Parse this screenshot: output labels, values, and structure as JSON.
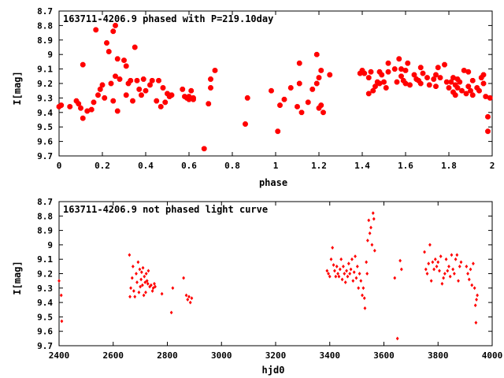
{
  "chart_data": [
    {
      "type": "scatter",
      "title": "163711-4206.9 phased with P=219.10day",
      "xlabel": "phase",
      "ylabel": "I[mag]",
      "xlim": [
        0,
        2
      ],
      "ylim": [
        8.7,
        9.7
      ],
      "y_inverted": true,
      "x_ticks": [
        "0",
        "0.2",
        "0.4",
        "0.6",
        "0.8",
        "1",
        "1.2",
        "1.4",
        "1.6",
        "1.8",
        "2"
      ],
      "y_ticks": [
        "8.7",
        "8.8",
        "8.9",
        "9",
        "9.1",
        "9.2",
        "9.3",
        "9.4",
        "9.5",
        "9.6",
        "9.7"
      ],
      "x_tick_values": [
        0,
        0.2,
        0.4,
        0.6,
        0.8,
        1,
        1.2,
        1.4,
        1.6,
        1.8,
        2
      ],
      "y_tick_values": [
        8.7,
        8.8,
        8.9,
        9.0,
        9.1,
        9.2,
        9.3,
        9.4,
        9.5,
        9.6,
        9.7
      ],
      "marker_color": "#ff0000",
      "marker_size": "large",
      "points": [
        [
          0.0,
          9.36
        ],
        [
          0.01,
          9.35
        ],
        [
          0.05,
          9.36
        ],
        [
          0.08,
          9.32
        ],
        [
          0.09,
          9.34
        ],
        [
          0.1,
          9.37
        ],
        [
          0.11,
          9.44
        ],
        [
          0.11,
          9.07
        ],
        [
          0.13,
          9.39
        ],
        [
          0.15,
          9.38
        ],
        [
          0.16,
          9.33
        ],
        [
          0.17,
          8.83
        ],
        [
          0.18,
          9.28
        ],
        [
          0.19,
          9.24
        ],
        [
          0.2,
          9.21
        ],
        [
          0.21,
          9.3
        ],
        [
          0.22,
          8.92
        ],
        [
          0.23,
          8.98
        ],
        [
          0.24,
          9.2
        ],
        [
          0.25,
          9.32
        ],
        [
          0.25,
          8.84
        ],
        [
          0.26,
          8.8
        ],
        [
          0.26,
          9.15
        ],
        [
          0.27,
          9.03
        ],
        [
          0.27,
          9.39
        ],
        [
          0.28,
          9.17
        ],
        [
          0.3,
          9.04
        ],
        [
          0.31,
          9.08
        ],
        [
          0.31,
          9.28
        ],
        [
          0.32,
          9.2
        ],
        [
          0.33,
          9.18
        ],
        [
          0.34,
          9.32
        ],
        [
          0.35,
          8.95
        ],
        [
          0.36,
          9.18
        ],
        [
          0.37,
          9.24
        ],
        [
          0.38,
          9.28
        ],
        [
          0.39,
          9.17
        ],
        [
          0.4,
          9.25
        ],
        [
          0.42,
          9.21
        ],
        [
          0.43,
          9.18
        ],
        [
          0.45,
          9.32
        ],
        [
          0.46,
          9.18
        ],
        [
          0.47,
          9.36
        ],
        [
          0.48,
          9.23
        ],
        [
          0.49,
          9.33
        ],
        [
          0.5,
          9.27
        ],
        [
          0.51,
          9.29
        ],
        [
          0.52,
          9.28
        ],
        [
          0.57,
          9.24
        ],
        [
          0.58,
          9.29
        ],
        [
          0.59,
          9.3
        ],
        [
          0.6,
          9.31
        ],
        [
          0.6,
          9.29
        ],
        [
          0.61,
          9.25
        ],
        [
          0.62,
          9.3
        ],
        [
          0.62,
          9.31
        ],
        [
          0.67,
          9.65
        ],
        [
          0.69,
          9.34
        ],
        [
          0.7,
          9.17
        ],
        [
          0.7,
          9.23
        ],
        [
          0.72,
          9.11
        ],
        [
          0.86,
          9.48
        ],
        [
          0.87,
          9.3
        ],
        [
          0.98,
          9.25
        ],
        [
          1.01,
          9.53
        ],
        [
          1.02,
          9.35
        ],
        [
          1.04,
          9.31
        ],
        [
          1.07,
          9.23
        ],
        [
          1.1,
          9.36
        ],
        [
          1.11,
          9.06
        ],
        [
          1.11,
          9.2
        ],
        [
          1.12,
          9.4
        ],
        [
          1.15,
          9.33
        ],
        [
          1.17,
          9.24
        ],
        [
          1.19,
          9.2
        ],
        [
          1.19,
          9.0
        ],
        [
          1.2,
          9.37
        ],
        [
          1.2,
          9.16
        ],
        [
          1.21,
          9.35
        ],
        [
          1.21,
          9.11
        ],
        [
          1.22,
          9.4
        ],
        [
          1.25,
          9.14
        ],
        [
          1.39,
          9.13
        ],
        [
          1.4,
          9.11
        ],
        [
          1.41,
          9.13
        ],
        [
          1.43,
          9.16
        ],
        [
          1.43,
          9.27
        ],
        [
          1.44,
          9.12
        ],
        [
          1.45,
          9.25
        ],
        [
          1.46,
          9.22
        ],
        [
          1.47,
          9.19
        ],
        [
          1.48,
          9.12
        ],
        [
          1.48,
          9.2
        ],
        [
          1.49,
          9.14
        ],
        [
          1.5,
          9.19
        ],
        [
          1.51,
          9.23
        ],
        [
          1.52,
          9.06
        ],
        [
          1.52,
          9.12
        ],
        [
          1.55,
          9.1
        ],
        [
          1.56,
          9.19
        ],
        [
          1.57,
          9.03
        ],
        [
          1.58,
          9.1
        ],
        [
          1.58,
          9.15
        ],
        [
          1.59,
          9.18
        ],
        [
          1.6,
          9.11
        ],
        [
          1.6,
          9.2
        ],
        [
          1.61,
          9.06
        ],
        [
          1.62,
          9.21
        ],
        [
          1.64,
          9.14
        ],
        [
          1.65,
          9.17
        ],
        [
          1.66,
          9.18
        ],
        [
          1.67,
          9.2
        ],
        [
          1.67,
          9.09
        ],
        [
          1.68,
          9.13
        ],
        [
          1.7,
          9.16
        ],
        [
          1.71,
          9.21
        ],
        [
          1.73,
          9.17
        ],
        [
          1.74,
          9.22
        ],
        [
          1.74,
          9.14
        ],
        [
          1.75,
          9.09
        ],
        [
          1.76,
          9.16
        ],
        [
          1.78,
          9.07
        ],
        [
          1.79,
          9.19
        ],
        [
          1.8,
          9.23
        ],
        [
          1.81,
          9.19
        ],
        [
          1.82,
          9.16
        ],
        [
          1.82,
          9.26
        ],
        [
          1.83,
          9.21
        ],
        [
          1.83,
          9.28
        ],
        [
          1.84,
          9.17
        ],
        [
          1.84,
          9.23
        ],
        [
          1.85,
          9.19
        ],
        [
          1.86,
          9.25
        ],
        [
          1.87,
          9.11
        ],
        [
          1.88,
          9.27
        ],
        [
          1.89,
          9.22
        ],
        [
          1.89,
          9.12
        ],
        [
          1.9,
          9.25
        ],
        [
          1.91,
          9.28
        ],
        [
          1.91,
          9.18
        ],
        [
          1.93,
          9.23
        ],
        [
          1.94,
          9.25
        ],
        [
          1.95,
          9.16
        ],
        [
          1.96,
          9.14
        ],
        [
          1.96,
          9.2
        ],
        [
          1.97,
          9.29
        ],
        [
          1.98,
          9.43
        ],
        [
          1.98,
          9.53
        ],
        [
          1.99,
          9.3
        ]
      ]
    },
    {
      "type": "scatter",
      "title": "163711-4206.9 not phased light curve",
      "xlabel": "hjd0",
      "ylabel": "I[mag]",
      "xlim": [
        2400,
        4000
      ],
      "ylim": [
        8.7,
        9.7
      ],
      "y_inverted": true,
      "x_ticks": [
        "2400",
        "2600",
        "2800",
        "3000",
        "3200",
        "3400",
        "3600",
        "3800",
        "4000"
      ],
      "y_ticks": [
        "8.7",
        "8.8",
        "8.9",
        "9",
        "9.1",
        "9.2",
        "9.3",
        "9.4",
        "9.5",
        "9.6",
        "9.7"
      ],
      "x_tick_values": [
        2400,
        2600,
        2800,
        3000,
        3200,
        3400,
        3600,
        3800,
        4000
      ],
      "y_tick_values": [
        8.7,
        8.8,
        8.9,
        9.0,
        9.1,
        9.2,
        9.3,
        9.4,
        9.5,
        9.6,
        9.7
      ],
      "marker_color": "#ff0000",
      "marker_size": "small",
      "points": [
        [
          2400,
          9.25
        ],
        [
          2408,
          9.35
        ],
        [
          2410,
          9.53
        ],
        [
          2660,
          9.07
        ],
        [
          2662,
          9.36
        ],
        [
          2665,
          9.3
        ],
        [
          2670,
          9.23
        ],
        [
          2673,
          9.15
        ],
        [
          2676,
          9.32
        ],
        [
          2680,
          9.36
        ],
        [
          2685,
          9.2
        ],
        [
          2688,
          9.26
        ],
        [
          2692,
          9.12
        ],
        [
          2695,
          9.33
        ],
        [
          2698,
          9.17
        ],
        [
          2700,
          9.29
        ],
        [
          2703,
          9.24
        ],
        [
          2705,
          9.19
        ],
        [
          2708,
          9.28
        ],
        [
          2710,
          9.16
        ],
        [
          2713,
          9.35
        ],
        [
          2715,
          9.22
        ],
        [
          2718,
          9.26
        ],
        [
          2720,
          9.33
        ],
        [
          2722,
          9.2
        ],
        [
          2725,
          9.25
        ],
        [
          2728,
          9.27
        ],
        [
          2730,
          9.18
        ],
        [
          2735,
          9.29
        ],
        [
          2740,
          9.28
        ],
        [
          2745,
          9.32
        ],
        [
          2748,
          9.3
        ],
        [
          2752,
          9.27
        ],
        [
          2755,
          9.29
        ],
        [
          2780,
          9.34
        ],
        [
          2815,
          9.47
        ],
        [
          2820,
          9.3
        ],
        [
          2860,
          9.23
        ],
        [
          2870,
          9.35
        ],
        [
          2875,
          9.38
        ],
        [
          2880,
          9.36
        ],
        [
          2885,
          9.4
        ],
        [
          2890,
          9.37
        ],
        [
          3390,
          9.18
        ],
        [
          3395,
          9.2
        ],
        [
          3400,
          9.22
        ],
        [
          3405,
          9.1
        ],
        [
          3410,
          9.02
        ],
        [
          3414,
          9.14
        ],
        [
          3418,
          9.18
        ],
        [
          3422,
          9.22
        ],
        [
          3426,
          9.15
        ],
        [
          3430,
          9.2
        ],
        [
          3434,
          9.22
        ],
        [
          3438,
          9.17
        ],
        [
          3442,
          9.1
        ],
        [
          3446,
          9.24
        ],
        [
          3450,
          9.15
        ],
        [
          3454,
          9.2
        ],
        [
          3458,
          9.26
        ],
        [
          3462,
          9.18
        ],
        [
          3466,
          9.22
        ],
        [
          3470,
          9.13
        ],
        [
          3474,
          9.2
        ],
        [
          3478,
          9.17
        ],
        [
          3482,
          9.1
        ],
        [
          3486,
          9.25
        ],
        [
          3490,
          9.19
        ],
        [
          3494,
          9.08
        ],
        [
          3498,
          9.23
        ],
        [
          3502,
          9.15
        ],
        [
          3506,
          9.3
        ],
        [
          3510,
          9.2
        ],
        [
          3515,
          9.25
        ],
        [
          3520,
          9.35
        ],
        [
          3524,
          9.3
        ],
        [
          3528,
          9.37
        ],
        [
          3530,
          9.44
        ],
        [
          3535,
          9.12
        ],
        [
          3538,
          9.2
        ],
        [
          3540,
          8.97
        ],
        [
          3544,
          8.83
        ],
        [
          3548,
          8.92
        ],
        [
          3552,
          8.88
        ],
        [
          3556,
          9.0
        ],
        [
          3560,
          8.78
        ],
        [
          3563,
          8.82
        ],
        [
          3566,
          9.04
        ],
        [
          3640,
          9.23
        ],
        [
          3650,
          9.65
        ],
        [
          3660,
          9.11
        ],
        [
          3665,
          9.17
        ],
        [
          3750,
          9.05
        ],
        [
          3755,
          9.17
        ],
        [
          3760,
          9.2
        ],
        [
          3765,
          9.13
        ],
        [
          3770,
          9.0
        ],
        [
          3775,
          9.25
        ],
        [
          3780,
          9.12
        ],
        [
          3785,
          9.17
        ],
        [
          3790,
          9.1
        ],
        [
          3795,
          9.15
        ],
        [
          3800,
          9.12
        ],
        [
          3805,
          9.18
        ],
        [
          3810,
          9.08
        ],
        [
          3815,
          9.27
        ],
        [
          3820,
          9.23
        ],
        [
          3825,
          9.2
        ],
        [
          3830,
          9.1
        ],
        [
          3835,
          9.18
        ],
        [
          3840,
          9.15
        ],
        [
          3845,
          9.22
        ],
        [
          3850,
          9.07
        ],
        [
          3855,
          9.17
        ],
        [
          3860,
          9.2
        ],
        [
          3865,
          9.1
        ],
        [
          3870,
          9.07
        ],
        [
          3875,
          9.25
        ],
        [
          3880,
          9.15
        ],
        [
          3885,
          9.12
        ],
        [
          3905,
          9.15
        ],
        [
          3910,
          9.2
        ],
        [
          3915,
          9.24
        ],
        [
          3920,
          9.17
        ],
        [
          3925,
          9.28
        ],
        [
          3930,
          9.13
        ],
        [
          3935,
          9.3
        ],
        [
          3938,
          9.42
        ],
        [
          3940,
          9.54
        ],
        [
          3942,
          9.38
        ],
        [
          3945,
          9.35
        ]
      ]
    }
  ]
}
